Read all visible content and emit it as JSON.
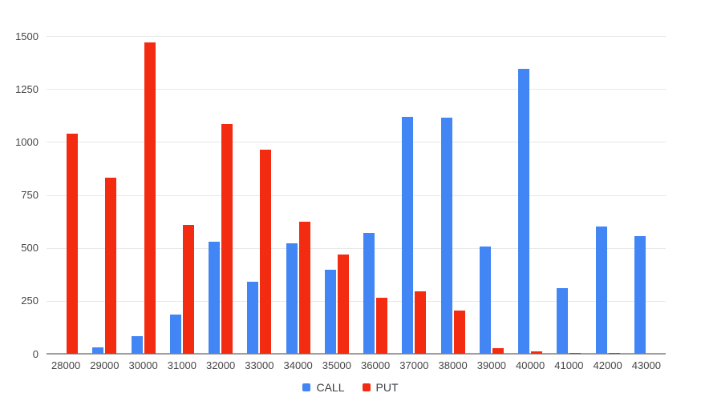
{
  "chart_data": {
    "type": "bar",
    "title": "",
    "xlabel": "",
    "ylabel": "",
    "categories": [
      "28000",
      "29000",
      "30000",
      "31000",
      "32000",
      "33000",
      "34000",
      "35000",
      "36000",
      "37000",
      "38000",
      "39000",
      "40000",
      "41000",
      "42000",
      "43000"
    ],
    "series": [
      {
        "name": "CALL",
        "color": "#4285F4",
        "values": [
          0,
          30,
          85,
          185,
          530,
          340,
          520,
          395,
          570,
          1120,
          1115,
          505,
          1345,
          310,
          600,
          555
        ]
      },
      {
        "name": "PUT",
        "color": "#F32B10",
        "values": [
          1040,
          830,
          1470,
          610,
          1085,
          965,
          625,
          470,
          265,
          295,
          205,
          27,
          12,
          2,
          2,
          0
        ]
      }
    ],
    "ylim": [
      0,
      1500
    ],
    "yticks": [
      0,
      250,
      500,
      750,
      1000,
      1250,
      1500
    ],
    "grid": true,
    "legend_position": "bottom"
  },
  "colors": {
    "background": "#ffffff",
    "gridline": "#e8e8e8",
    "axis_line": "#9e9e9e",
    "tick_text": "#464646",
    "legend_text": "#3c4043"
  }
}
